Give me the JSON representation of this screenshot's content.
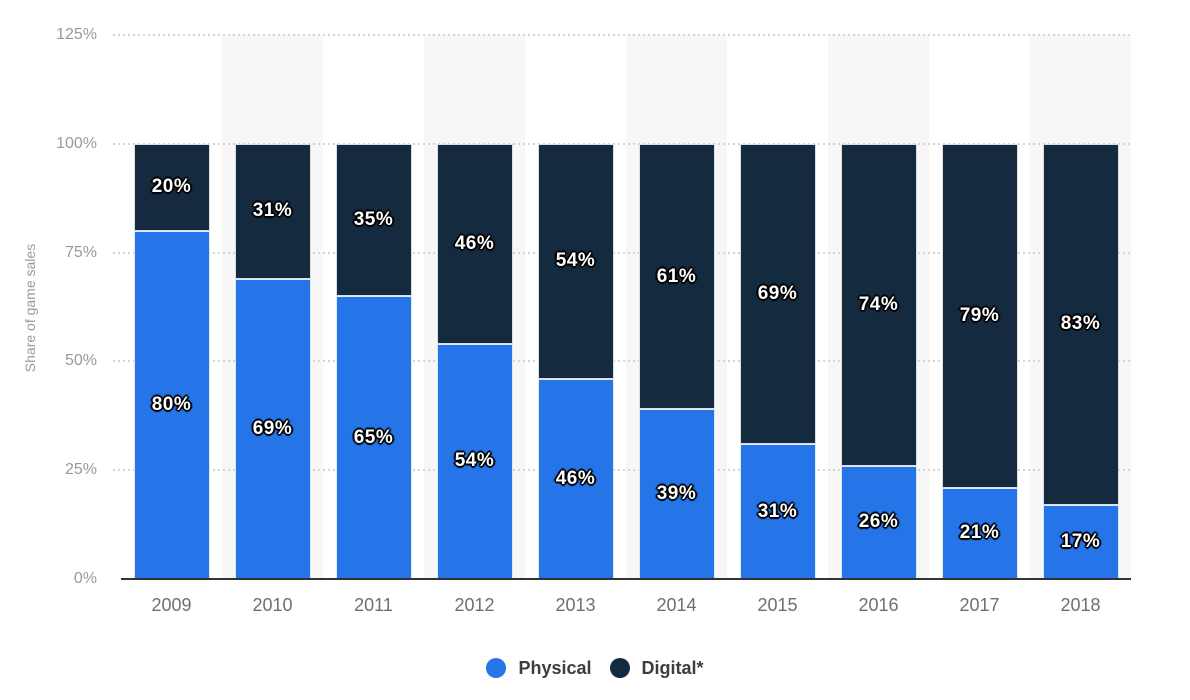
{
  "chart_data": {
    "type": "bar",
    "variant": "stacked-column",
    "ylabel": "Share of game sales",
    "categories": [
      "2009",
      "2010",
      "2011",
      "2012",
      "2013",
      "2014",
      "2015",
      "2016",
      "2017",
      "2018"
    ],
    "series": [
      {
        "name": "Physical",
        "color": "#2574E8",
        "values": [
          80,
          69,
          65,
          54,
          46,
          39,
          31,
          26,
          21,
          17
        ]
      },
      {
        "name": "Digital*",
        "color": "#142A3F",
        "values": [
          20,
          31,
          35,
          46,
          54,
          61,
          69,
          74,
          79,
          83
        ]
      }
    ],
    "ylim": [
      0,
      125
    ],
    "y_ticks": [
      "0%",
      "25%",
      "50%",
      "75%",
      "100%",
      "125%"
    ],
    "y_tick_values": [
      0,
      25,
      50,
      75,
      100,
      125
    ],
    "grid": "horizontal-dotted",
    "legend_position": "bottom-center",
    "data_label_suffix": "%",
    "plot_band_colors": [
      "#ffffff",
      "#f7f7f7"
    ],
    "axis_line_color": "#333333"
  }
}
